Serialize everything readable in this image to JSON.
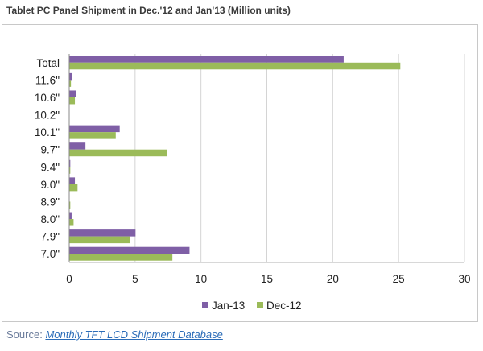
{
  "page": {
    "title": "Tablet PC Panel Shipment in Dec.'12 and Jan'13 (Million units)",
    "source_prefix": "Source:",
    "source_link_text": "Monthly TFT LCD Shipment Database"
  },
  "chart_data": {
    "type": "bar",
    "orientation": "horizontal",
    "title": "Tablet PC Panel Shipment in Dec.'12 and Jan'13 (Million units)",
    "categories": [
      "Total",
      "11.6\"",
      "10.6\"",
      "10.2\"",
      "10.1\"",
      "9.7\"",
      "9.4\"",
      "9.0\"",
      "8.9\"",
      "8.0\"",
      "7.9\"",
      "7.0\""
    ],
    "series": [
      {
        "name": "Jan-13",
        "color": "#7f5fa6",
        "values": [
          20.8,
          0.2,
          0.5,
          0.0,
          3.8,
          1.2,
          0.05,
          0.4,
          0.0,
          0.15,
          5.0,
          9.1
        ]
      },
      {
        "name": "Dec-12",
        "color": "#9bbb59",
        "values": [
          25.1,
          0.1,
          0.4,
          0.0,
          3.5,
          7.4,
          0.05,
          0.6,
          0.05,
          0.3,
          4.6,
          7.8
        ]
      }
    ],
    "xlim": [
      0,
      30
    ],
    "xticks": [
      "0",
      "5",
      "10",
      "15",
      "20",
      "25",
      "30"
    ],
    "grid": "vertical",
    "legend": "bottom"
  }
}
